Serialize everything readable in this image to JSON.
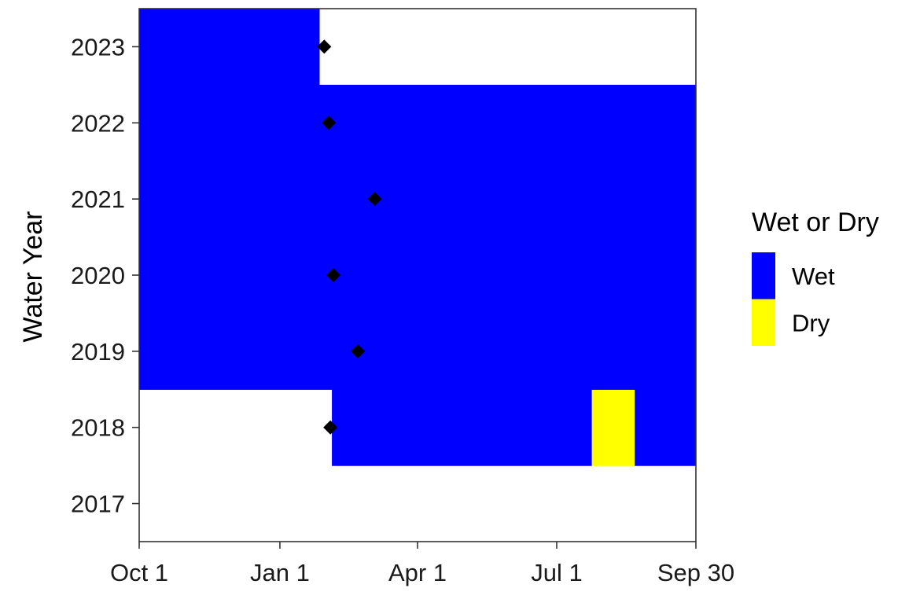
{
  "chart_data": {
    "type": "heatmap",
    "ylabel": "Water Year",
    "x_ticks": [
      {
        "label": "Oct 1",
        "value": "Oct 1"
      },
      {
        "label": "Jan 1",
        "value": "Jan 1"
      },
      {
        "label": "Apr 1",
        "value": "Apr 1"
      },
      {
        "label": "Jul 1",
        "value": "Jul 1"
      },
      {
        "label": "Sep 30",
        "value": "Sep 30"
      }
    ],
    "xlim": [
      "Oct 1",
      "Sep 30"
    ],
    "y_categories": [
      "2017",
      "2018",
      "2019",
      "2020",
      "2021",
      "2022",
      "2023"
    ],
    "grid": false,
    "legend": {
      "title": "Wet or Dry",
      "position": "right",
      "items": [
        {
          "label": "Wet",
          "color": "#0000ff"
        },
        {
          "label": "Dry",
          "color": "#ffff00"
        }
      ]
    },
    "periods": [
      {
        "year": "2018",
        "start": "Feb 4",
        "end": "Jul 24",
        "state": "Wet"
      },
      {
        "year": "2018",
        "start": "Jul 24",
        "end": "Aug 21",
        "state": "Dry"
      },
      {
        "year": "2018",
        "start": "Aug 21",
        "end": "Sep 30",
        "state": "Wet"
      },
      {
        "year": "2019",
        "start": "Oct 1",
        "end": "Sep 30",
        "state": "Wet"
      },
      {
        "year": "2020",
        "start": "Oct 1",
        "end": "Sep 30",
        "state": "Wet"
      },
      {
        "year": "2021",
        "start": "Oct 1",
        "end": "Sep 30",
        "state": "Wet"
      },
      {
        "year": "2022",
        "start": "Oct 1",
        "end": "Sep 30",
        "state": "Wet"
      },
      {
        "year": "2023",
        "start": "Oct 1",
        "end": "Jan 27",
        "state": "Wet"
      }
    ],
    "markers": [
      {
        "year": "2018",
        "date": "Feb 3"
      },
      {
        "year": "2019",
        "date": "Feb 21"
      },
      {
        "year": "2020",
        "date": "Feb 5"
      },
      {
        "year": "2021",
        "date": "Mar 4"
      },
      {
        "year": "2022",
        "date": "Feb 2"
      },
      {
        "year": "2023",
        "date": "Jan 30"
      }
    ]
  }
}
